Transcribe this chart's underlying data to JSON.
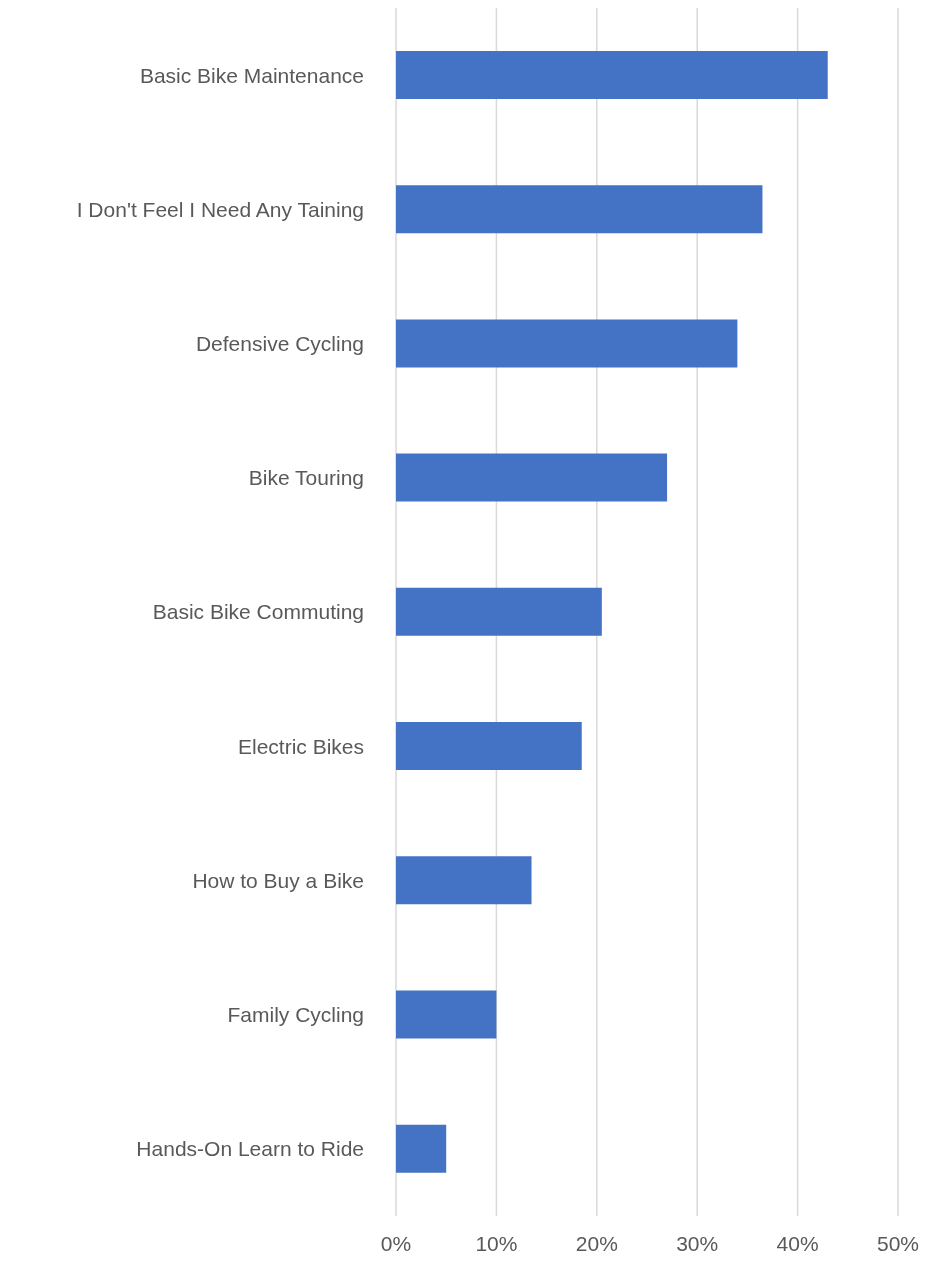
{
  "chart_data": {
    "type": "bar",
    "orientation": "horizontal",
    "categories": [
      "Basic Bike Maintenance",
      "I Don't Feel I Need Any Taining",
      "Defensive Cycling",
      "Bike Touring",
      "Basic Bike Commuting",
      "Electric Bikes",
      "How to Buy a Bike",
      "Family Cycling",
      "Hands-On Learn to Ride"
    ],
    "values": [
      43,
      36.5,
      34,
      27,
      20.5,
      18.5,
      13.5,
      10,
      5
    ],
    "color": "#4472c4",
    "xlim": [
      0,
      50
    ],
    "xticks": [
      {
        "value": 0,
        "label": "0%"
      },
      {
        "value": 10,
        "label": "10%"
      },
      {
        "value": 20,
        "label": "20%"
      },
      {
        "value": 30,
        "label": "30%"
      },
      {
        "value": 40,
        "label": "40%"
      },
      {
        "value": 50,
        "label": "50%"
      }
    ],
    "grid": "x",
    "legend": false
  }
}
